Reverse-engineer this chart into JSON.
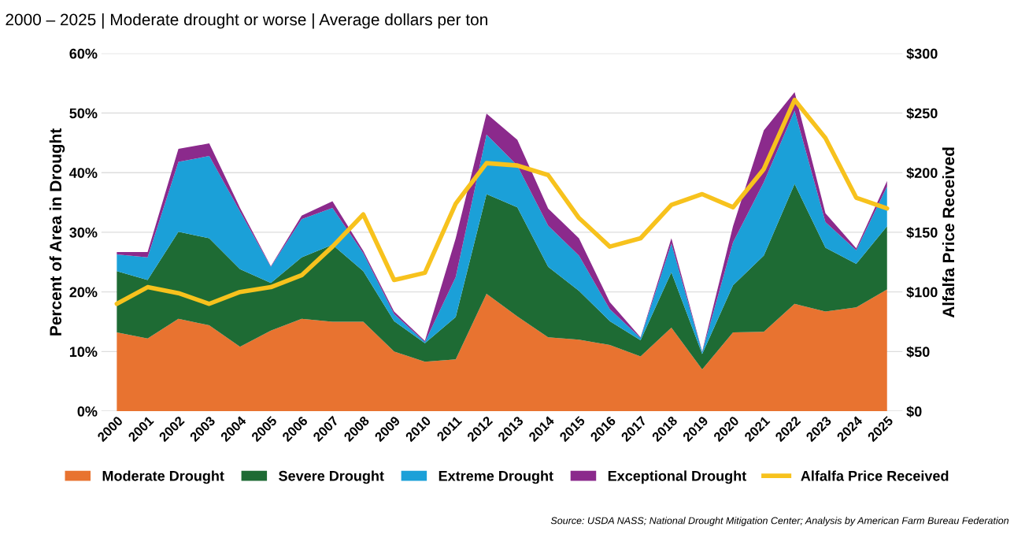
{
  "chart_data": {
    "type": "area",
    "stacked": true,
    "title": "2000 – 2025 | Moderate drought or worse | Average dollars per ton",
    "ylabel": "Percent of Area in Drought",
    "y2label": "Alfalfa Price Received",
    "categories": [
      "2000",
      "2001",
      "2002",
      "2003",
      "2004",
      "2005",
      "2006",
      "2007",
      "2008",
      "2009",
      "2010",
      "2011",
      "2012",
      "2013",
      "2014",
      "2015",
      "2016",
      "2017",
      "2018",
      "2019",
      "2020",
      "2021",
      "2022",
      "2023",
      "2024",
      "2025"
    ],
    "series": [
      {
        "name": "Moderate Drought",
        "color": "#e87330",
        "values": [
          13.2,
          12.2,
          15.5,
          14.4,
          10.8,
          13.5,
          15.5,
          15.0,
          15.0,
          10.0,
          8.3,
          8.7,
          19.7,
          15.9,
          12.4,
          12.0,
          11.1,
          9.2,
          14.0,
          7.0,
          13.2,
          13.3,
          18.0,
          16.7,
          17.4,
          20.4
        ]
      },
      {
        "name": "Severe Drought",
        "color": "#1e6b34",
        "values": [
          10.3,
          9.8,
          14.6,
          14.6,
          13.0,
          8.0,
          10.3,
          12.9,
          8.5,
          5.1,
          3.1,
          7.1,
          16.7,
          18.3,
          11.8,
          8.2,
          4.0,
          2.7,
          9.3,
          2.6,
          7.9,
          12.8,
          20.1,
          10.7,
          7.3,
          10.6
        ]
      },
      {
        "name": "Extreme Drought",
        "color": "#1ba0d8",
        "values": [
          2.8,
          3.8,
          11.7,
          13.8,
          9.7,
          2.7,
          6.4,
          6.2,
          3.0,
          1.2,
          0.2,
          6.7,
          10.0,
          7.0,
          6.9,
          5.9,
          2.0,
          0.4,
          4.8,
          0.3,
          7.2,
          12.3,
          12.3,
          4.3,
          2.3,
          6.7
        ]
      },
      {
        "name": "Exceptional Drought",
        "color": "#8b2a8c",
        "values": [
          0.4,
          0.9,
          2.2,
          2.1,
          0.6,
          0.1,
          0.6,
          1.1,
          0.4,
          0.4,
          0.2,
          6.5,
          3.5,
          4.3,
          2.9,
          2.9,
          1.2,
          0.1,
          0.9,
          0.1,
          2.7,
          8.7,
          3.1,
          1.5,
          0.3,
          0.9
        ]
      },
      {
        "name": "Alfalfa Price Received",
        "color": "#f7c21d",
        "type": "line",
        "axis": "y2",
        "values": [
          90,
          104,
          99,
          90,
          100,
          104,
          114,
          138,
          165,
          110,
          116,
          174,
          208,
          206,
          198,
          162,
          138,
          145,
          173,
          182,
          171,
          203,
          261,
          229,
          179,
          170
        ]
      }
    ],
    "ylim": [
      0,
      60
    ],
    "yticks": [
      {
        "value": 0,
        "label": "0%"
      },
      {
        "value": 10,
        "label": "10%"
      },
      {
        "value": 20,
        "label": "20%"
      },
      {
        "value": 30,
        "label": "30%"
      },
      {
        "value": 40,
        "label": "40%"
      },
      {
        "value": 50,
        "label": "50%"
      },
      {
        "value": 60,
        "label": "60%"
      }
    ],
    "y2lim": [
      0,
      300
    ],
    "y2ticks": [
      {
        "value": 0,
        "label": "$0"
      },
      {
        "value": 50,
        "label": "$50"
      },
      {
        "value": 100,
        "label": "$100"
      },
      {
        "value": 150,
        "label": "$150"
      },
      {
        "value": 200,
        "label": "$200"
      },
      {
        "value": 250,
        "label": "$250"
      },
      {
        "value": 300,
        "label": "$300"
      }
    ],
    "grid": "y",
    "legend": "bottom",
    "line_style": "solid",
    "annotations": [
      "Source: USDA NASS; National Drought Mitigation Center; Analysis by American Farm Bureau Federation"
    ]
  }
}
